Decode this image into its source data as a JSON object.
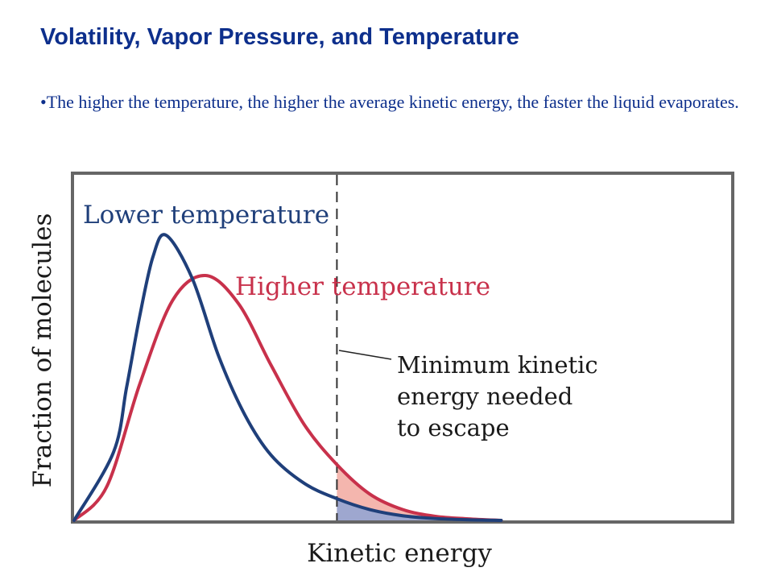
{
  "slide": {
    "title": "Volatility, Vapor Pressure, and Temperature",
    "bullet": "•The higher the temperature, the higher the average kinetic energy, the faster the liquid evaporates."
  },
  "colors": {
    "title_text": "#0d2f8c",
    "lower_series": "#1f3f7a",
    "higher_series": "#c8314b",
    "higher_fill": "#f4b6ae",
    "lower_fill": "#9ea7cf",
    "frame": "#666666"
  },
  "chart_data": {
    "type": "line",
    "title": "",
    "xlabel": "Kinetic energy",
    "ylabel": "Fraction of molecules",
    "xlim": [
      0,
      10
    ],
    "ylim": [
      0,
      10
    ],
    "grid": false,
    "ticks": false,
    "series": [
      {
        "name": "Lower temperature",
        "color": "#1f3f7a",
        "x": [
          0,
          0.6,
          0.8,
          1.0,
          1.2,
          1.4,
          1.8,
          2.2,
          2.6,
          3.0,
          3.5,
          4.0,
          4.5,
          5.0,
          5.5,
          6.0,
          6.5
        ],
        "y": [
          0,
          2.2,
          4.3,
          6.6,
          8.5,
          9.2,
          7.8,
          5.3,
          3.4,
          2.1,
          1.2,
          0.7,
          0.35,
          0.15,
          0.06,
          0.02,
          0
        ]
      },
      {
        "name": "Higher temperature",
        "color": "#c8314b",
        "x": [
          0,
          0.5,
          1.0,
          1.5,
          2.0,
          2.5,
          3.0,
          3.5,
          4.0,
          4.5,
          5.0,
          5.5,
          6.0,
          6.5
        ],
        "y": [
          0,
          1.1,
          4.4,
          7.1,
          7.9,
          7.0,
          5.0,
          3.1,
          1.8,
          0.85,
          0.35,
          0.13,
          0.05,
          0
        ]
      }
    ],
    "threshold": {
      "x": 4.0,
      "style": "dashed"
    },
    "annotations": [
      {
        "text_lines": [
          "Minimum kinetic",
          "energy needed",
          "to escape"
        ],
        "points_to_x": 4.0
      }
    ]
  }
}
